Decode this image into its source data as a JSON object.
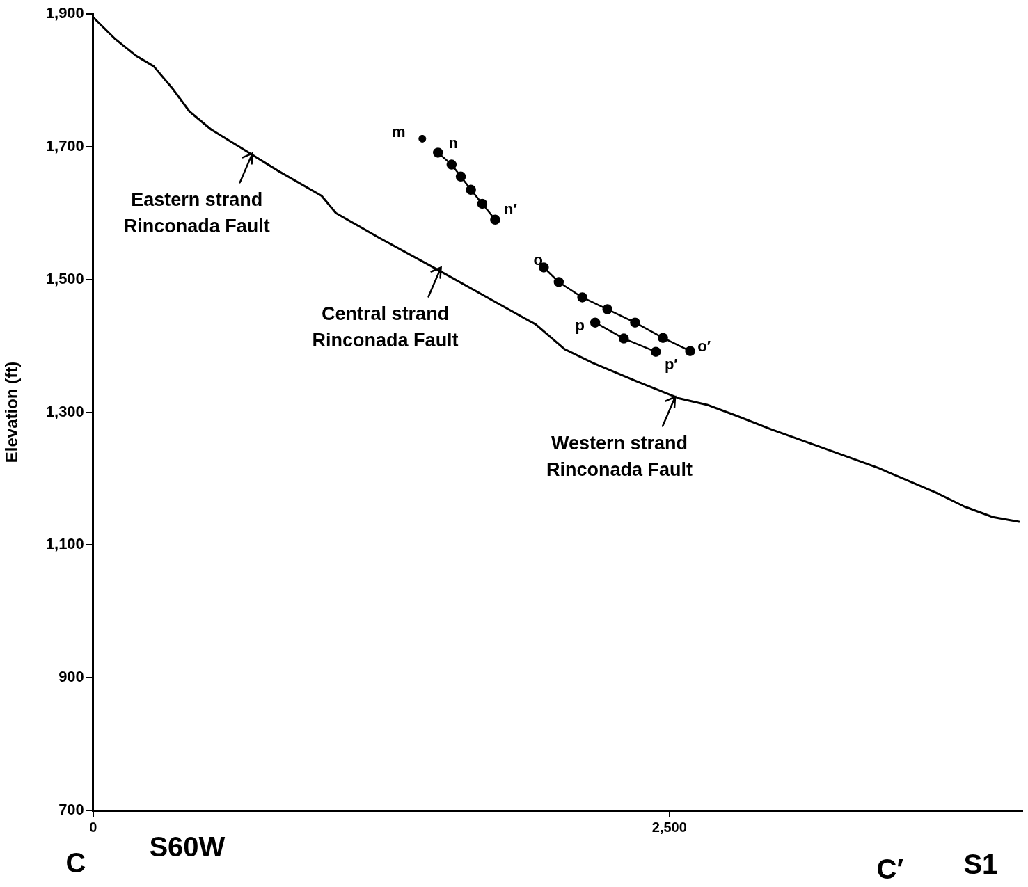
{
  "chart_data": {
    "type": "line",
    "ylabel": "Elevation (ft)",
    "xlim": [
      0,
      4030
    ],
    "xticks": [
      {
        "value": 0,
        "label": "0"
      },
      {
        "value": 2500,
        "label": "2,500"
      }
    ],
    "ylim": [
      700,
      1900
    ],
    "yticks": [
      {
        "value": 700,
        "label": "700"
      },
      {
        "value": 900,
        "label": "900"
      },
      {
        "value": 1100,
        "label": "1,100"
      },
      {
        "value": 1300,
        "label": "1,300"
      },
      {
        "value": 1500,
        "label": "1,500"
      },
      {
        "value": 1700,
        "label": "1,700"
      },
      {
        "value": 1900,
        "label": "1,900"
      }
    ],
    "grid": false,
    "legend": false,
    "series": [
      {
        "marker": "none",
        "color": "#000000",
        "x": [
          0,
          93,
          186,
          263,
          341,
          418,
          511,
          666,
          805,
          991,
          1053,
          1239,
          1487,
          1735,
          1921,
          2045,
          2169,
          2354,
          2540,
          2664,
          2788,
          2943,
          3160,
          3407,
          3655,
          3779,
          3903,
          4017
        ],
        "values": [
          1895,
          1863,
          1837,
          1821,
          1789,
          1753,
          1726,
          1693,
          1663,
          1626,
          1600,
          1563,
          1516,
          1468,
          1432,
          1395,
          1374,
          1347,
          1321,
          1311,
          1295,
          1274,
          1247,
          1216,
          1179,
          1158,
          1142,
          1135
        ]
      },
      {
        "type": "scatter",
        "marker": "circle",
        "color": "#000000",
        "x": [
          1428
        ],
        "values": [
          1712
        ]
      },
      {
        "marker": "circle",
        "color": "#000000",
        "x": [
          1496,
          1555,
          1595,
          1639,
          1688,
          1744
        ],
        "values": [
          1691,
          1673,
          1655,
          1635,
          1614,
          1590
        ]
      },
      {
        "marker": "circle",
        "color": "#000000",
        "x": [
          1955,
          2020,
          2122,
          2231,
          2351,
          2472,
          2590
        ],
        "values": [
          1518,
          1496,
          1473,
          1455,
          1435,
          1412,
          1392
        ]
      },
      {
        "marker": "circle",
        "color": "#000000",
        "x": [
          2178,
          2302,
          2441
        ],
        "values": [
          1435,
          1411,
          1391
        ]
      }
    ],
    "annotations": [
      {
        "text": "Eastern strand\nRinconada Fault",
        "x": 691,
        "y": 1690
      },
      {
        "text": "Central strand\nRinconada Fault",
        "x": 1509,
        "y": 1518
      },
      {
        "text": "Western strand\nRinconada Fault",
        "x": 2525,
        "y": 1323
      },
      {
        "text": "m",
        "x": 1428,
        "y": 1712
      },
      {
        "text": "n",
        "x": 1496,
        "y": 1691
      },
      {
        "text": "n′",
        "x": 1744,
        "y": 1590
      },
      {
        "text": "o",
        "x": 1955,
        "y": 1518
      },
      {
        "text": "o′",
        "x": 2590,
        "y": 1392
      },
      {
        "text": "p",
        "x": 2178,
        "y": 1435
      },
      {
        "text": "p′",
        "x": 2441,
        "y": 1391
      },
      "C",
      "S60W",
      "C′",
      "S1"
    ]
  }
}
